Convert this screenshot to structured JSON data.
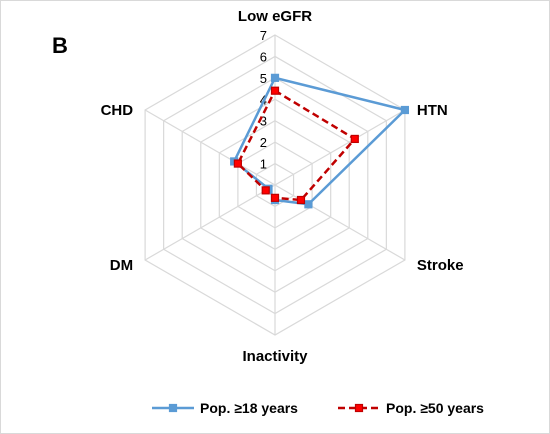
{
  "panel_label": "B",
  "chart_data": {
    "type": "radar",
    "axes": [
      "Low eGFR",
      "HTN",
      "Stroke",
      "Inactivity",
      "DM",
      "CHD"
    ],
    "ticks": [
      "1",
      "2",
      "3",
      "4",
      "5",
      "6",
      "7"
    ],
    "rlim": [
      0,
      7
    ],
    "grid": true,
    "legend_position": "bottom",
    "series": [
      {
        "name": "Pop. ≥18 years",
        "values": [
          5.0,
          7.0,
          1.8,
          0.7,
          0.35,
          2.2
        ],
        "color": "#5b9bd5",
        "style": "solid",
        "marker": "square"
      },
      {
        "name": "Pop.  ≥50 years",
        "values": [
          4.4,
          4.3,
          1.4,
          0.6,
          0.5,
          2.0
        ],
        "color": "#c00000",
        "marker_fill": "#ff0000",
        "style": "dashed",
        "marker": "square"
      }
    ]
  }
}
